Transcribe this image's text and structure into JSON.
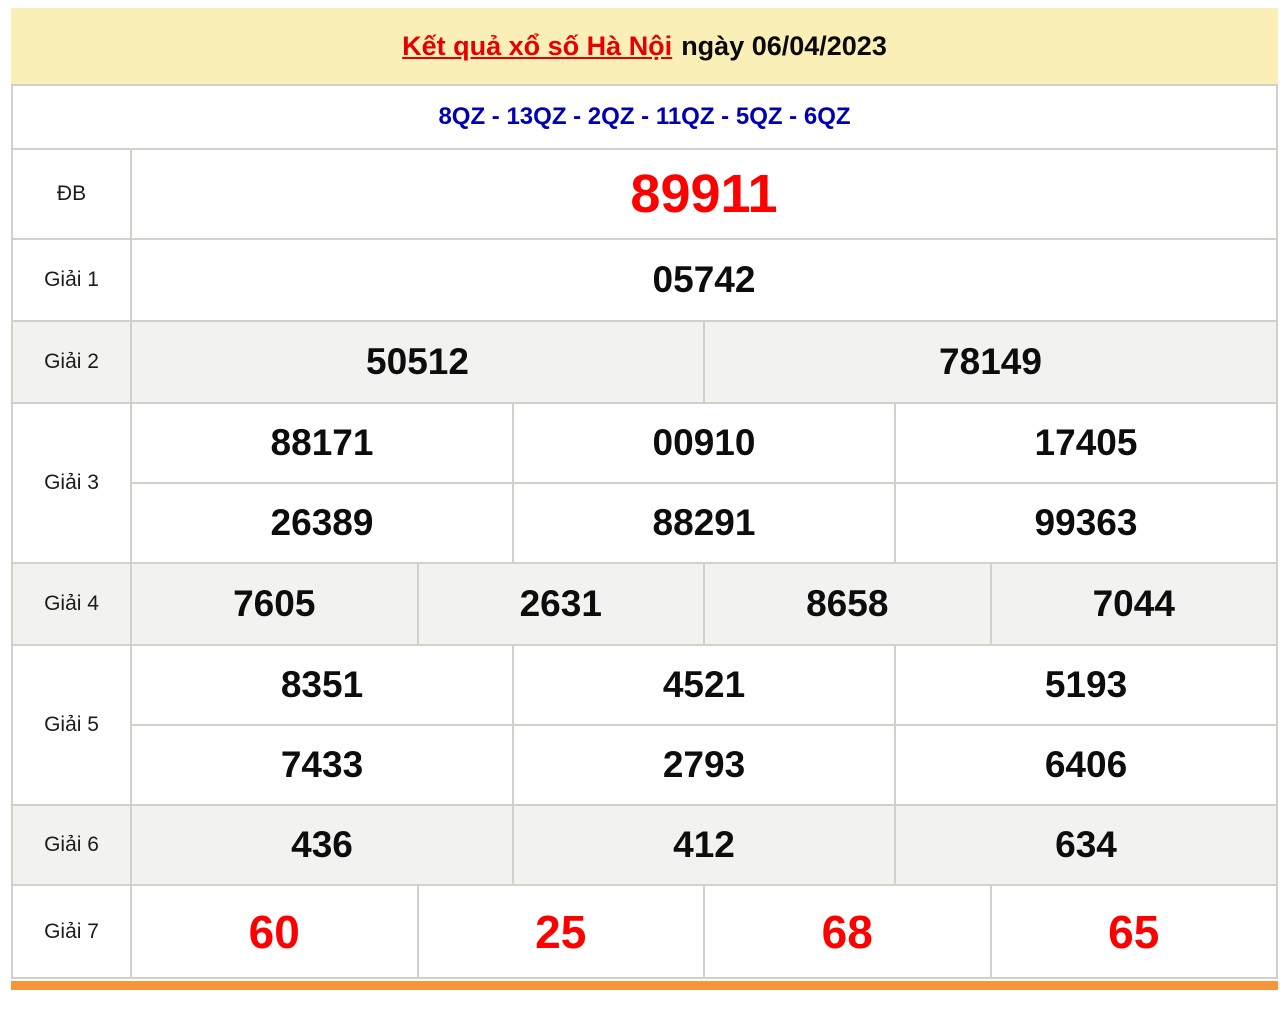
{
  "header": {
    "title_link": "Kết quả xổ số Hà Nội",
    "title_suffix": "ngày 06/04/2023"
  },
  "codes_line": "8QZ - 13QZ - 2QZ - 11QZ - 5QZ - 6QZ",
  "results": {
    "rows": [
      {
        "label": "ĐB",
        "style": "special",
        "shade": false,
        "numbers": [
          [
            "89911"
          ]
        ]
      },
      {
        "label": "Giải 1",
        "style": "",
        "shade": false,
        "numbers": [
          [
            "05742"
          ]
        ]
      },
      {
        "label": "Giải 2",
        "style": "",
        "shade": true,
        "numbers": [
          [
            "50512",
            "78149"
          ]
        ]
      },
      {
        "label": "Giải 3",
        "style": "",
        "shade": false,
        "numbers": [
          [
            "88171",
            "00910",
            "17405"
          ],
          [
            "26389",
            "88291",
            "99363"
          ]
        ]
      },
      {
        "label": "Giải 4",
        "style": "",
        "shade": true,
        "numbers": [
          [
            "7605",
            "2631",
            "8658",
            "7044"
          ]
        ]
      },
      {
        "label": "Giải 5",
        "style": "",
        "shade": false,
        "numbers": [
          [
            "8351",
            "4521",
            "5193"
          ],
          [
            "7433",
            "2793",
            "6406"
          ]
        ]
      },
      {
        "label": "Giải 6",
        "style": "",
        "shade": true,
        "numbers": [
          [
            "436",
            "412",
            "634"
          ]
        ]
      },
      {
        "label": "Giải 7",
        "style": "red",
        "shade": false,
        "numbers": [
          [
            "60",
            "25",
            "68",
            "65"
          ]
        ]
      }
    ]
  },
  "colors": {
    "header_bg": "#FBEFB8",
    "shade_row_bg": "#F2F2F0",
    "title_red": "#E60000",
    "number_red": "#FF0000",
    "codes_blue": "#0000B3",
    "border_gray": "#D2D0C9",
    "bottom_bar_orange": "#F7953B"
  }
}
